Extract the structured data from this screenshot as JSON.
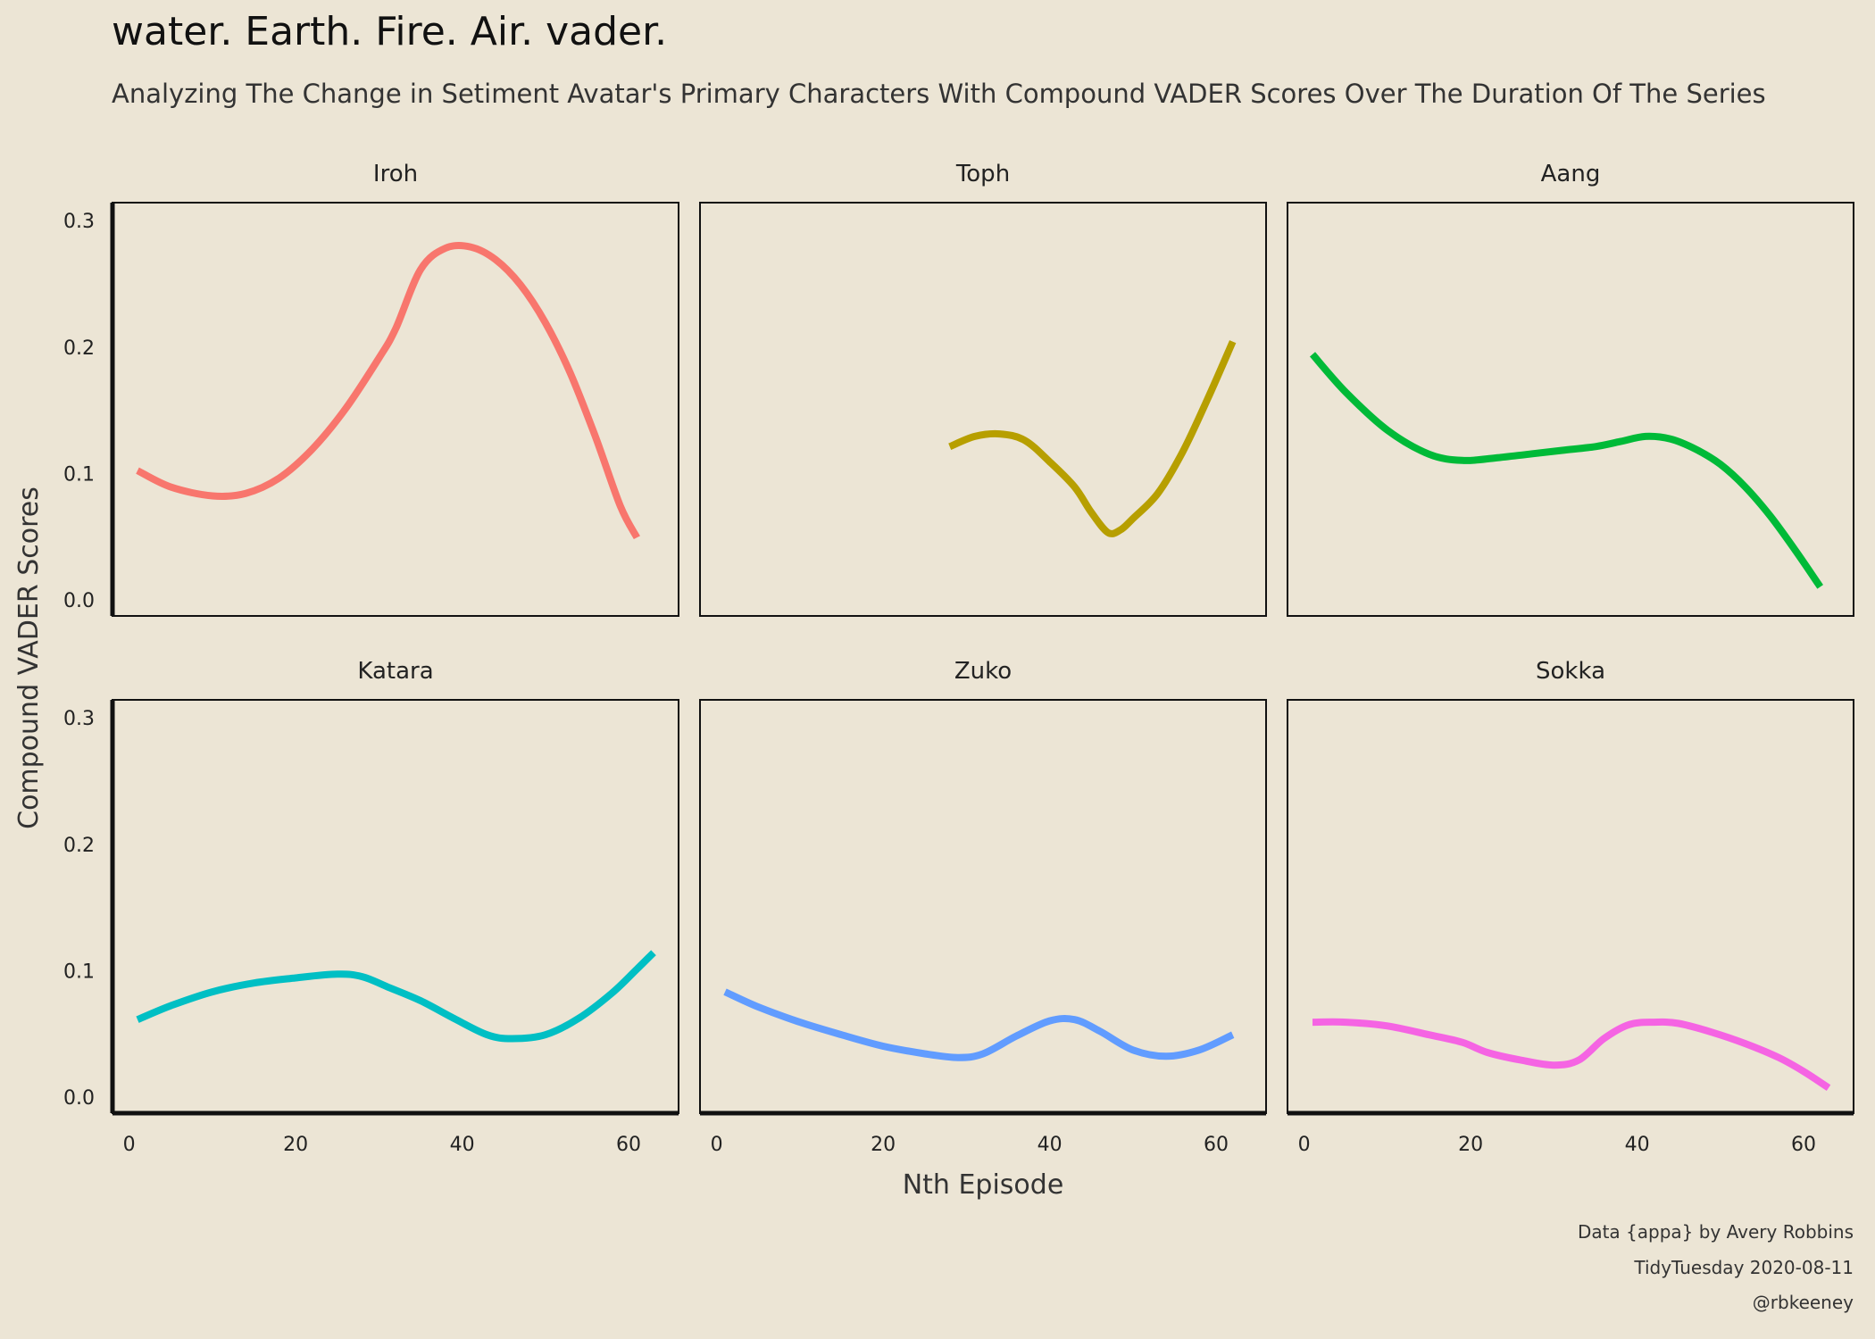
{
  "title": "water. Earth. Fire. Air. vader.",
  "subtitle": "Analyzing The Change in Setiment Avatar's Primary Characters With Compound VADER Scores Over The Duration Of The Series",
  "caption": {
    "line1": "Data {appa} by Avery Robbins",
    "line2": "TidyTuesday 2020-08-11",
    "line3": "@rbkeeney"
  },
  "chart_data": {
    "type": "line",
    "facets": "2x3 grid",
    "xlabel": "Nth Episode",
    "ylabel": "Compound VADER Scores",
    "xlim": [
      -2,
      66
    ],
    "ylim": [
      -0.012,
      0.315
    ],
    "x_ticks": [
      0,
      20,
      40,
      60
    ],
    "y_ticks": [
      0.0,
      0.1,
      0.2,
      0.3
    ],
    "x_tick_labels": [
      "0",
      "20",
      "40",
      "60"
    ],
    "y_tick_labels": [
      "0.0",
      "0.1",
      "0.2",
      "0.3"
    ],
    "series": [
      {
        "name": "Iroh",
        "color": "#F8766D",
        "x": [
          1,
          5,
          10,
          14,
          18,
          22,
          26,
          30,
          32,
          35,
          38,
          41,
          44,
          47,
          50,
          53,
          56,
          59,
          61
        ],
        "y": [
          0.103,
          0.09,
          0.083,
          0.085,
          0.097,
          0.12,
          0.152,
          0.192,
          0.215,
          0.262,
          0.279,
          0.28,
          0.27,
          0.25,
          0.22,
          0.18,
          0.13,
          0.075,
          0.05
        ]
      },
      {
        "name": "Toph",
        "color": "#B79F00",
        "x": [
          28,
          31,
          34,
          37,
          40,
          43,
          45,
          47,
          48.5,
          50,
          53,
          56,
          59,
          62
        ],
        "y": [
          0.122,
          0.13,
          0.132,
          0.127,
          0.11,
          0.09,
          0.07,
          0.054,
          0.056,
          0.065,
          0.085,
          0.118,
          0.16,
          0.205
        ]
      },
      {
        "name": "Aang",
        "color": "#00BA38",
        "x": [
          1,
          5,
          10,
          15,
          19,
          23,
          27,
          31,
          35,
          38,
          41,
          44,
          47,
          50,
          53,
          56,
          59,
          62
        ],
        "y": [
          0.195,
          0.165,
          0.135,
          0.116,
          0.111,
          0.113,
          0.116,
          0.119,
          0.122,
          0.126,
          0.13,
          0.128,
          0.12,
          0.108,
          0.09,
          0.067,
          0.04,
          0.011
        ]
      },
      {
        "name": "Katara",
        "color": "#00BFC4",
        "x": [
          1,
          5,
          10,
          15,
          20,
          25,
          28,
          31,
          35,
          39,
          43,
          46,
          50,
          54,
          58,
          61,
          63
        ],
        "y": [
          0.062,
          0.073,
          0.084,
          0.091,
          0.095,
          0.098,
          0.096,
          0.088,
          0.077,
          0.063,
          0.05,
          0.047,
          0.05,
          0.063,
          0.083,
          0.102,
          0.115
        ]
      },
      {
        "name": "Zuko",
        "color": "#619CFF",
        "x": [
          1,
          5,
          10,
          15,
          20,
          25,
          29,
          32,
          36,
          40,
          43,
          46,
          50,
          54,
          58,
          62
        ],
        "y": [
          0.084,
          0.072,
          0.06,
          0.05,
          0.041,
          0.035,
          0.032,
          0.035,
          0.049,
          0.061,
          0.062,
          0.053,
          0.038,
          0.033,
          0.038,
          0.05
        ]
      },
      {
        "name": "Sokka",
        "color": "#F564E3",
        "x": [
          1,
          5,
          10,
          15,
          19,
          22,
          26,
          30,
          33,
          36,
          39,
          42,
          45,
          49,
          53,
          57,
          60,
          63
        ],
        "y": [
          0.06,
          0.06,
          0.057,
          0.05,
          0.044,
          0.036,
          0.03,
          0.026,
          0.03,
          0.047,
          0.058,
          0.06,
          0.059,
          0.052,
          0.043,
          0.032,
          0.021,
          0.008
        ]
      }
    ]
  }
}
